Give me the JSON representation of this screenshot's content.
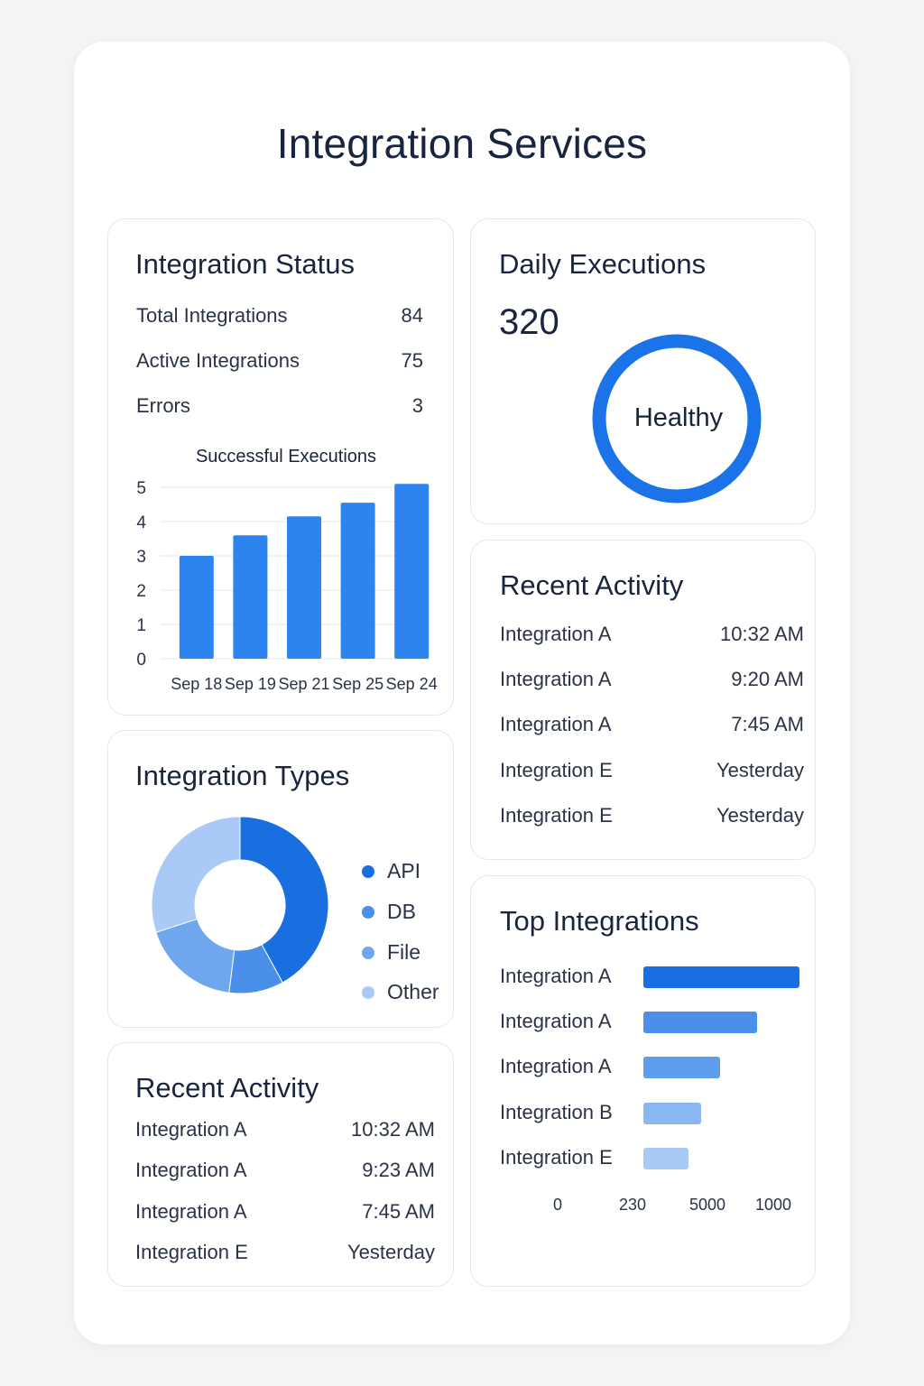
{
  "page": {
    "title": "Integration Services"
  },
  "status": {
    "title": "Integration Status",
    "rows": [
      {
        "label": "Total Integrations",
        "value": "84"
      },
      {
        "label": "Active Integrations",
        "value": "75"
      },
      {
        "label": "Errors",
        "value": "3"
      }
    ]
  },
  "daily": {
    "title": "Daily Executions",
    "value": "320",
    "gauge_label": "Healthy",
    "gauge_color": "#1a73e8"
  },
  "recent_right": {
    "title": "Recent Activity",
    "rows": [
      {
        "name": "Integration A",
        "time": "10:32 AM"
      },
      {
        "name": "Integration A",
        "time": "9:20 AM"
      },
      {
        "name": "Integration A",
        "time": "7:45 AM"
      },
      {
        "name": "Integration E",
        "time": "Yesterday"
      },
      {
        "name": "Integration E",
        "time": "Yesterday"
      }
    ]
  },
  "types": {
    "title": "Integration Types",
    "legend": [
      {
        "label": "API",
        "color": "#1a6fe0"
      },
      {
        "label": "DB",
        "color": "#4a8fe9"
      },
      {
        "label": "File",
        "color": "#6fa7ef"
      },
      {
        "label": "Other",
        "color": "#a9c9f6"
      }
    ]
  },
  "recent_left": {
    "title": "Recent Activity",
    "rows": [
      {
        "name": "Integration A",
        "time": "10:32 AM"
      },
      {
        "name": "Integration A",
        "time": "9:23 AM"
      },
      {
        "name": "Integration A",
        "time": "7:45 AM"
      },
      {
        "name": "Integration E",
        "time": "Yesterday"
      }
    ]
  },
  "top": {
    "title": "Top Integrations",
    "rows": [
      {
        "name": "Integration A",
        "fraction": 1.0,
        "color": "#1a6fe0"
      },
      {
        "name": "Integration A",
        "fraction": 0.73,
        "color": "#4a8fe9"
      },
      {
        "name": "Integration A",
        "fraction": 0.49,
        "color": "#5e9cec"
      },
      {
        "name": "Integration B",
        "fraction": 0.37,
        "color": "#8ab6f2"
      },
      {
        "name": "Integration E",
        "fraction": 0.29,
        "color": "#a9c9f6"
      }
    ],
    "axis_ticks": [
      "0",
      "230",
      "5000",
      "1000"
    ]
  },
  "chart_data": [
    {
      "type": "bar",
      "title": "Successful Executions",
      "categories": [
        "Sep 18",
        "Sep 19",
        "Sep 21",
        "Sep 25",
        "Sep 24"
      ],
      "values": [
        3.0,
        3.6,
        4.15,
        4.55,
        5.1
      ],
      "yticks": [
        "0",
        "1",
        "2",
        "3",
        "4",
        "5"
      ],
      "ylim": [
        0,
        5
      ],
      "grid": true,
      "color": "#2d84ee"
    },
    {
      "type": "pie",
      "donut": true,
      "categories": [
        "API",
        "DB",
        "File",
        "Other"
      ],
      "values": [
        42,
        10,
        18,
        30
      ]
    }
  ]
}
